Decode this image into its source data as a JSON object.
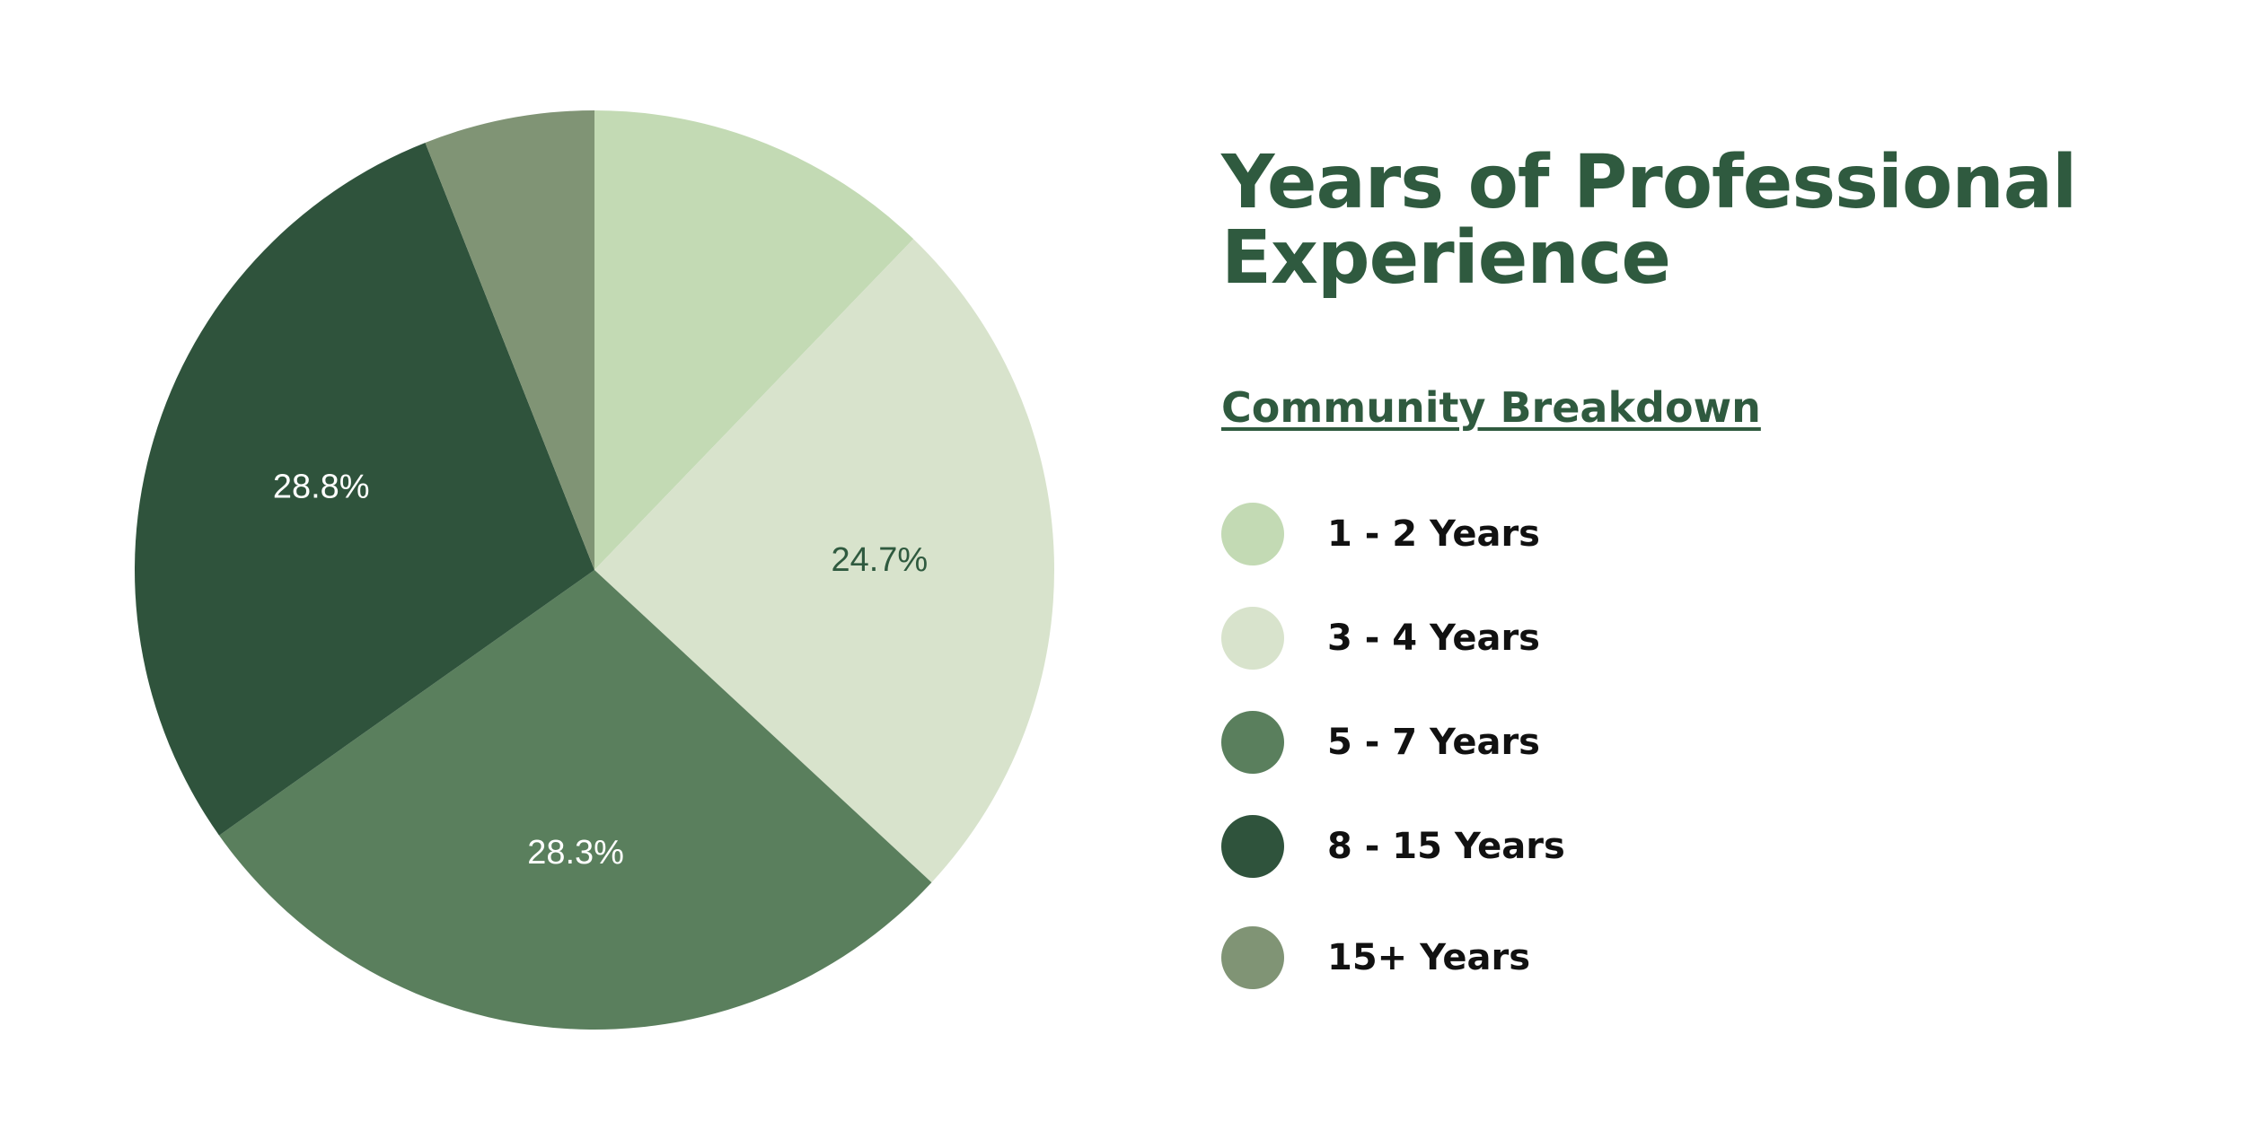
{
  "title": "Years of Professional Experience",
  "subtitle": "Community Breakdown",
  "chart_data": {
    "type": "pie",
    "title": "Years of Professional Experience",
    "subtitle": "Community Breakdown",
    "legend_position": "right",
    "start_angle_deg": 0,
    "direction": "clockwise",
    "slices": [
      {
        "name": "1 - 2 Years",
        "value": 12.2,
        "color": "#c3dab4",
        "label": "",
        "label_color": "#2f5a3f"
      },
      {
        "name": "3 - 4 Years",
        "value": 24.7,
        "color": "#d8e3cc",
        "label": "24.7%",
        "label_color": "#2f5a3f"
      },
      {
        "name": "5 - 7 Years",
        "value": 28.3,
        "color": "#5a7f5d",
        "label": "28.3%",
        "label_color": "#ffffff"
      },
      {
        "name": "8 - 15 Years",
        "value": 28.8,
        "color": "#2f533c",
        "label": "28.8%",
        "label_color": "#ffffff"
      },
      {
        "name": "15+ Years",
        "value": 6.0,
        "color": "#809475",
        "label": "",
        "label_color": "#ffffff"
      }
    ]
  }
}
